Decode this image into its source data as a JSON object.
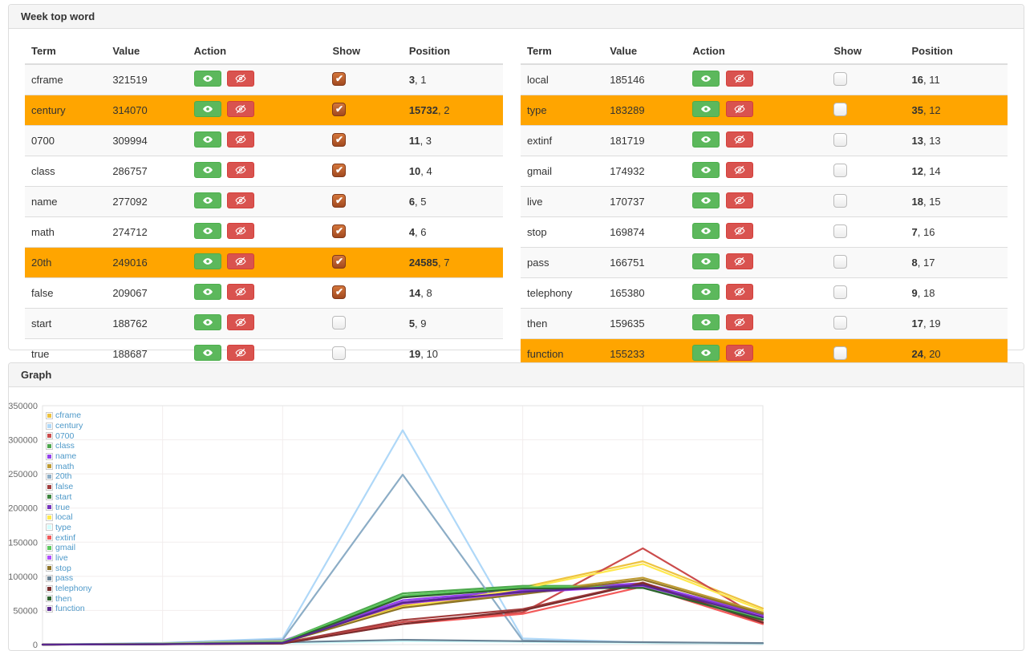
{
  "week_panel": {
    "title": "Week top word",
    "columns": [
      "Term",
      "Value",
      "Action",
      "Show",
      "Position"
    ],
    "action_icons": {
      "show": "eye-icon",
      "hide": "eye-slash-icon"
    },
    "highlight_color": "#ffa500",
    "button_colors": {
      "show": "#5cb85c",
      "hide": "#d9534f"
    },
    "tables": {
      "left": [
        {
          "term": "cframe",
          "value": "321519",
          "position_main": "3",
          "position_rank": "1",
          "checked": true,
          "highlight": false
        },
        {
          "term": "century",
          "value": "314070",
          "position_main": "15732",
          "position_rank": "2",
          "checked": true,
          "highlight": true
        },
        {
          "term": "0700",
          "value": "309994",
          "position_main": "11",
          "position_rank": "3",
          "checked": true,
          "highlight": false
        },
        {
          "term": "class",
          "value": "286757",
          "position_main": "10",
          "position_rank": "4",
          "checked": true,
          "highlight": false
        },
        {
          "term": "name",
          "value": "277092",
          "position_main": "6",
          "position_rank": "5",
          "checked": true,
          "highlight": false
        },
        {
          "term": "math",
          "value": "274712",
          "position_main": "4",
          "position_rank": "6",
          "checked": true,
          "highlight": false
        },
        {
          "term": "20th",
          "value": "249016",
          "position_main": "24585",
          "position_rank": "7",
          "checked": true,
          "highlight": true
        },
        {
          "term": "false",
          "value": "209067",
          "position_main": "14",
          "position_rank": "8",
          "checked": true,
          "highlight": false
        },
        {
          "term": "start",
          "value": "188762",
          "position_main": "5",
          "position_rank": "9",
          "checked": false,
          "highlight": false
        },
        {
          "term": "true",
          "value": "188687",
          "position_main": "19",
          "position_rank": "10",
          "checked": false,
          "highlight": false
        }
      ],
      "right": [
        {
          "term": "local",
          "value": "185146",
          "position_main": "16",
          "position_rank": "11",
          "checked": false,
          "highlight": false
        },
        {
          "term": "type",
          "value": "183289",
          "position_main": "35",
          "position_rank": "12",
          "checked": false,
          "highlight": true
        },
        {
          "term": "extinf",
          "value": "181719",
          "position_main": "13",
          "position_rank": "13",
          "checked": false,
          "highlight": false
        },
        {
          "term": "gmail",
          "value": "174932",
          "position_main": "12",
          "position_rank": "14",
          "checked": false,
          "highlight": false
        },
        {
          "term": "live",
          "value": "170737",
          "position_main": "18",
          "position_rank": "15",
          "checked": false,
          "highlight": false
        },
        {
          "term": "stop",
          "value": "169874",
          "position_main": "7",
          "position_rank": "16",
          "checked": false,
          "highlight": false
        },
        {
          "term": "pass",
          "value": "166751",
          "position_main": "8",
          "position_rank": "17",
          "checked": false,
          "highlight": false
        },
        {
          "term": "telephony",
          "value": "165380",
          "position_main": "9",
          "position_rank": "18",
          "checked": false,
          "highlight": false
        },
        {
          "term": "then",
          "value": "159635",
          "position_main": "17",
          "position_rank": "19",
          "checked": false,
          "highlight": false
        },
        {
          "term": "function",
          "value": "155233",
          "position_main": "24",
          "position_rank": "20",
          "checked": false,
          "highlight": true
        }
      ]
    }
  },
  "graph_panel": {
    "title": "Graph"
  },
  "chart_data": {
    "type": "line",
    "title": "",
    "xlabel": "",
    "ylabel": "",
    "ylim": [
      0,
      350000
    ],
    "y_ticks": [
      0,
      50000,
      100000,
      150000,
      200000,
      250000,
      300000,
      350000
    ],
    "x_point_count": 7,
    "grid": true,
    "legend_position": "top-left",
    "series": [
      {
        "name": "cframe",
        "color": "#edc240",
        "values": [
          0,
          1500,
          5000,
          58000,
          84000,
          122000,
          53000
        ]
      },
      {
        "name": "century",
        "color": "#afd8f8",
        "values": [
          0,
          2500,
          9000,
          314070,
          9000,
          3000,
          2000
        ]
      },
      {
        "name": "0700",
        "color": "#cb4b4b",
        "values": [
          0,
          800,
          2500,
          33000,
          47000,
          141000,
          37000
        ]
      },
      {
        "name": "class",
        "color": "#4da74d",
        "values": [
          0,
          1200,
          4500,
          75000,
          86000,
          86000,
          39000
        ]
      },
      {
        "name": "name",
        "color": "#9440ed",
        "values": [
          0,
          1500,
          5500,
          65000,
          80000,
          90000,
          44000
        ]
      },
      {
        "name": "math",
        "color": "#be9b33",
        "values": [
          0,
          900,
          3200,
          56000,
          76000,
          98000,
          47000
        ]
      },
      {
        "name": "20th",
        "color": "#8cadc6",
        "values": [
          0,
          2000,
          7000,
          249016,
          6000,
          2500,
          1200
        ]
      },
      {
        "name": "false",
        "color": "#a23c3c",
        "values": [
          0,
          700,
          2200,
          36000,
          52000,
          91000,
          33000
        ]
      },
      {
        "name": "start",
        "color": "#3d853d",
        "values": [
          0,
          900,
          3500,
          70000,
          83000,
          84000,
          37000
        ]
      },
      {
        "name": "true",
        "color": "#7633be",
        "values": [
          0,
          1100,
          4000,
          62000,
          78000,
          88000,
          42000
        ]
      },
      {
        "name": "local",
        "color": "#ffe94d",
        "values": [
          0,
          1300,
          4800,
          55000,
          82000,
          118000,
          50000
        ]
      },
      {
        "name": "type",
        "color": "#d2ffff",
        "values": [
          0,
          600,
          2000,
          5000,
          4000,
          2500,
          1500
        ]
      },
      {
        "name": "extinf",
        "color": "#f35a5a",
        "values": [
          0,
          500,
          1800,
          30000,
          45000,
          85000,
          30000
        ]
      },
      {
        "name": "gmail",
        "color": "#5cc85c",
        "values": [
          0,
          1000,
          4200,
          72000,
          84000,
          85000,
          38000
        ]
      },
      {
        "name": "live",
        "color": "#b14dff",
        "values": [
          0,
          800,
          3000,
          60000,
          76000,
          86000,
          41000
        ]
      },
      {
        "name": "stop",
        "color": "#8e7426",
        "values": [
          0,
          700,
          2800,
          54000,
          74000,
          95000,
          45000
        ]
      },
      {
        "name": "pass",
        "color": "#698295",
        "values": [
          0,
          900,
          3300,
          7000,
          5000,
          3500,
          2200
        ]
      },
      {
        "name": "telephony",
        "color": "#7a2d2d",
        "values": [
          0,
          400,
          1500,
          30000,
          50000,
          90000,
          32000
        ]
      },
      {
        "name": "then",
        "color": "#2e642e",
        "values": [
          0,
          600,
          2500,
          69000,
          82000,
          83000,
          36000
        ]
      },
      {
        "name": "function",
        "color": "#59268e",
        "values": [
          0,
          500,
          2300,
          61000,
          77000,
          87000,
          40000
        ]
      }
    ]
  }
}
